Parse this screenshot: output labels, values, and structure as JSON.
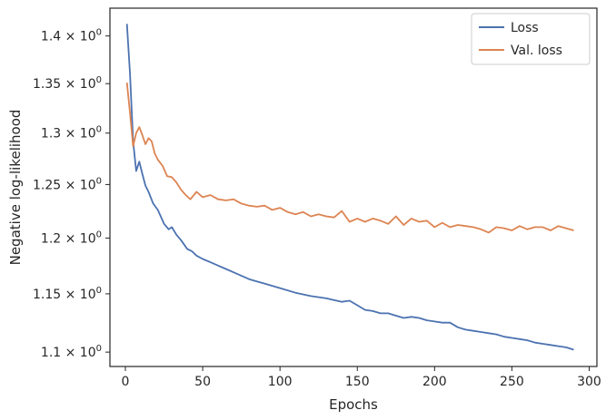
{
  "chart_data": {
    "type": "line",
    "xlabel": "Epochs",
    "ylabel": "Negative log-likelihood",
    "xlim": [
      -10,
      305
    ],
    "ylim": [
      1.088,
      1.43
    ],
    "y_scale": "log",
    "grid": false,
    "legend_position": "top-right",
    "x_ticks": [
      0,
      50,
      100,
      150,
      200,
      250,
      300
    ],
    "x_tick_labels": [
      "0",
      "50",
      "100",
      "150",
      "200",
      "250",
      "300"
    ],
    "y_ticks": [
      1.1,
      1.15,
      1.2,
      1.25,
      1.3,
      1.35,
      1.4
    ],
    "y_tick_labels": [
      {
        "mant": "1.1",
        "base": "10",
        "exp": "0"
      },
      {
        "mant": "1.15",
        "base": "10",
        "exp": "0"
      },
      {
        "mant": "1.2",
        "base": "10",
        "exp": "0"
      },
      {
        "mant": "1.25",
        "base": "10",
        "exp": "0"
      },
      {
        "mant": "1.3",
        "base": "10",
        "exp": "0"
      },
      {
        "mant": "1.35",
        "base": "10",
        "exp": "0"
      },
      {
        "mant": "1.4",
        "base": "10",
        "exp": "0"
      }
    ],
    "series": [
      {
        "name": "Loss",
        "color": "#4c72b0",
        "x": [
          1,
          3,
          5,
          7,
          9,
          11,
          13,
          15,
          18,
          21,
          25,
          28,
          30,
          33,
          36,
          40,
          43,
          46,
          50,
          55,
          60,
          65,
          70,
          75,
          80,
          85,
          90,
          95,
          100,
          110,
          120,
          130,
          140,
          145,
          150,
          155,
          160,
          165,
          170,
          175,
          180,
          185,
          190,
          195,
          200,
          205,
          210,
          215,
          220,
          225,
          230,
          235,
          240,
          245,
          250,
          255,
          260,
          265,
          270,
          275,
          280,
          285,
          290
        ],
        "y": [
          1.413,
          1.36,
          1.292,
          1.263,
          1.272,
          1.26,
          1.249,
          1.243,
          1.232,
          1.226,
          1.213,
          1.208,
          1.21,
          1.203,
          1.198,
          1.19,
          1.188,
          1.184,
          1.181,
          1.178,
          1.175,
          1.172,
          1.169,
          1.166,
          1.163,
          1.161,
          1.159,
          1.157,
          1.155,
          1.151,
          1.148,
          1.146,
          1.143,
          1.144,
          1.14,
          1.136,
          1.135,
          1.133,
          1.133,
          1.131,
          1.129,
          1.13,
          1.129,
          1.127,
          1.126,
          1.125,
          1.125,
          1.121,
          1.119,
          1.118,
          1.117,
          1.116,
          1.115,
          1.113,
          1.112,
          1.111,
          1.11,
          1.108,
          1.107,
          1.106,
          1.105,
          1.104,
          1.102
        ]
      },
      {
        "name": "Val. loss",
        "color": "#dd8452",
        "x": [
          1,
          3,
          5,
          7,
          9,
          11,
          13,
          15,
          17,
          19,
          21,
          24,
          27,
          30,
          33,
          36,
          39,
          42,
          46,
          50,
          55,
          60,
          65,
          70,
          75,
          80,
          85,
          90,
          95,
          100,
          105,
          110,
          115,
          120,
          125,
          130,
          135,
          140,
          145,
          150,
          155,
          160,
          165,
          170,
          175,
          180,
          185,
          190,
          195,
          200,
          205,
          210,
          215,
          220,
          225,
          230,
          235,
          240,
          245,
          250,
          255,
          260,
          265,
          270,
          275,
          280,
          285,
          290
        ],
        "y": [
          1.351,
          1.32,
          1.287,
          1.3,
          1.306,
          1.298,
          1.289,
          1.295,
          1.292,
          1.28,
          1.274,
          1.268,
          1.258,
          1.257,
          1.252,
          1.245,
          1.24,
          1.236,
          1.243,
          1.238,
          1.24,
          1.236,
          1.235,
          1.236,
          1.232,
          1.23,
          1.229,
          1.23,
          1.226,
          1.228,
          1.224,
          1.222,
          1.224,
          1.22,
          1.222,
          1.22,
          1.219,
          1.225,
          1.215,
          1.218,
          1.215,
          1.218,
          1.216,
          1.213,
          1.22,
          1.212,
          1.218,
          1.215,
          1.216,
          1.21,
          1.214,
          1.21,
          1.212,
          1.211,
          1.21,
          1.208,
          1.205,
          1.21,
          1.209,
          1.207,
          1.211,
          1.208,
          1.21,
          1.21,
          1.207,
          1.211,
          1.209,
          1.207
        ]
      }
    ]
  }
}
